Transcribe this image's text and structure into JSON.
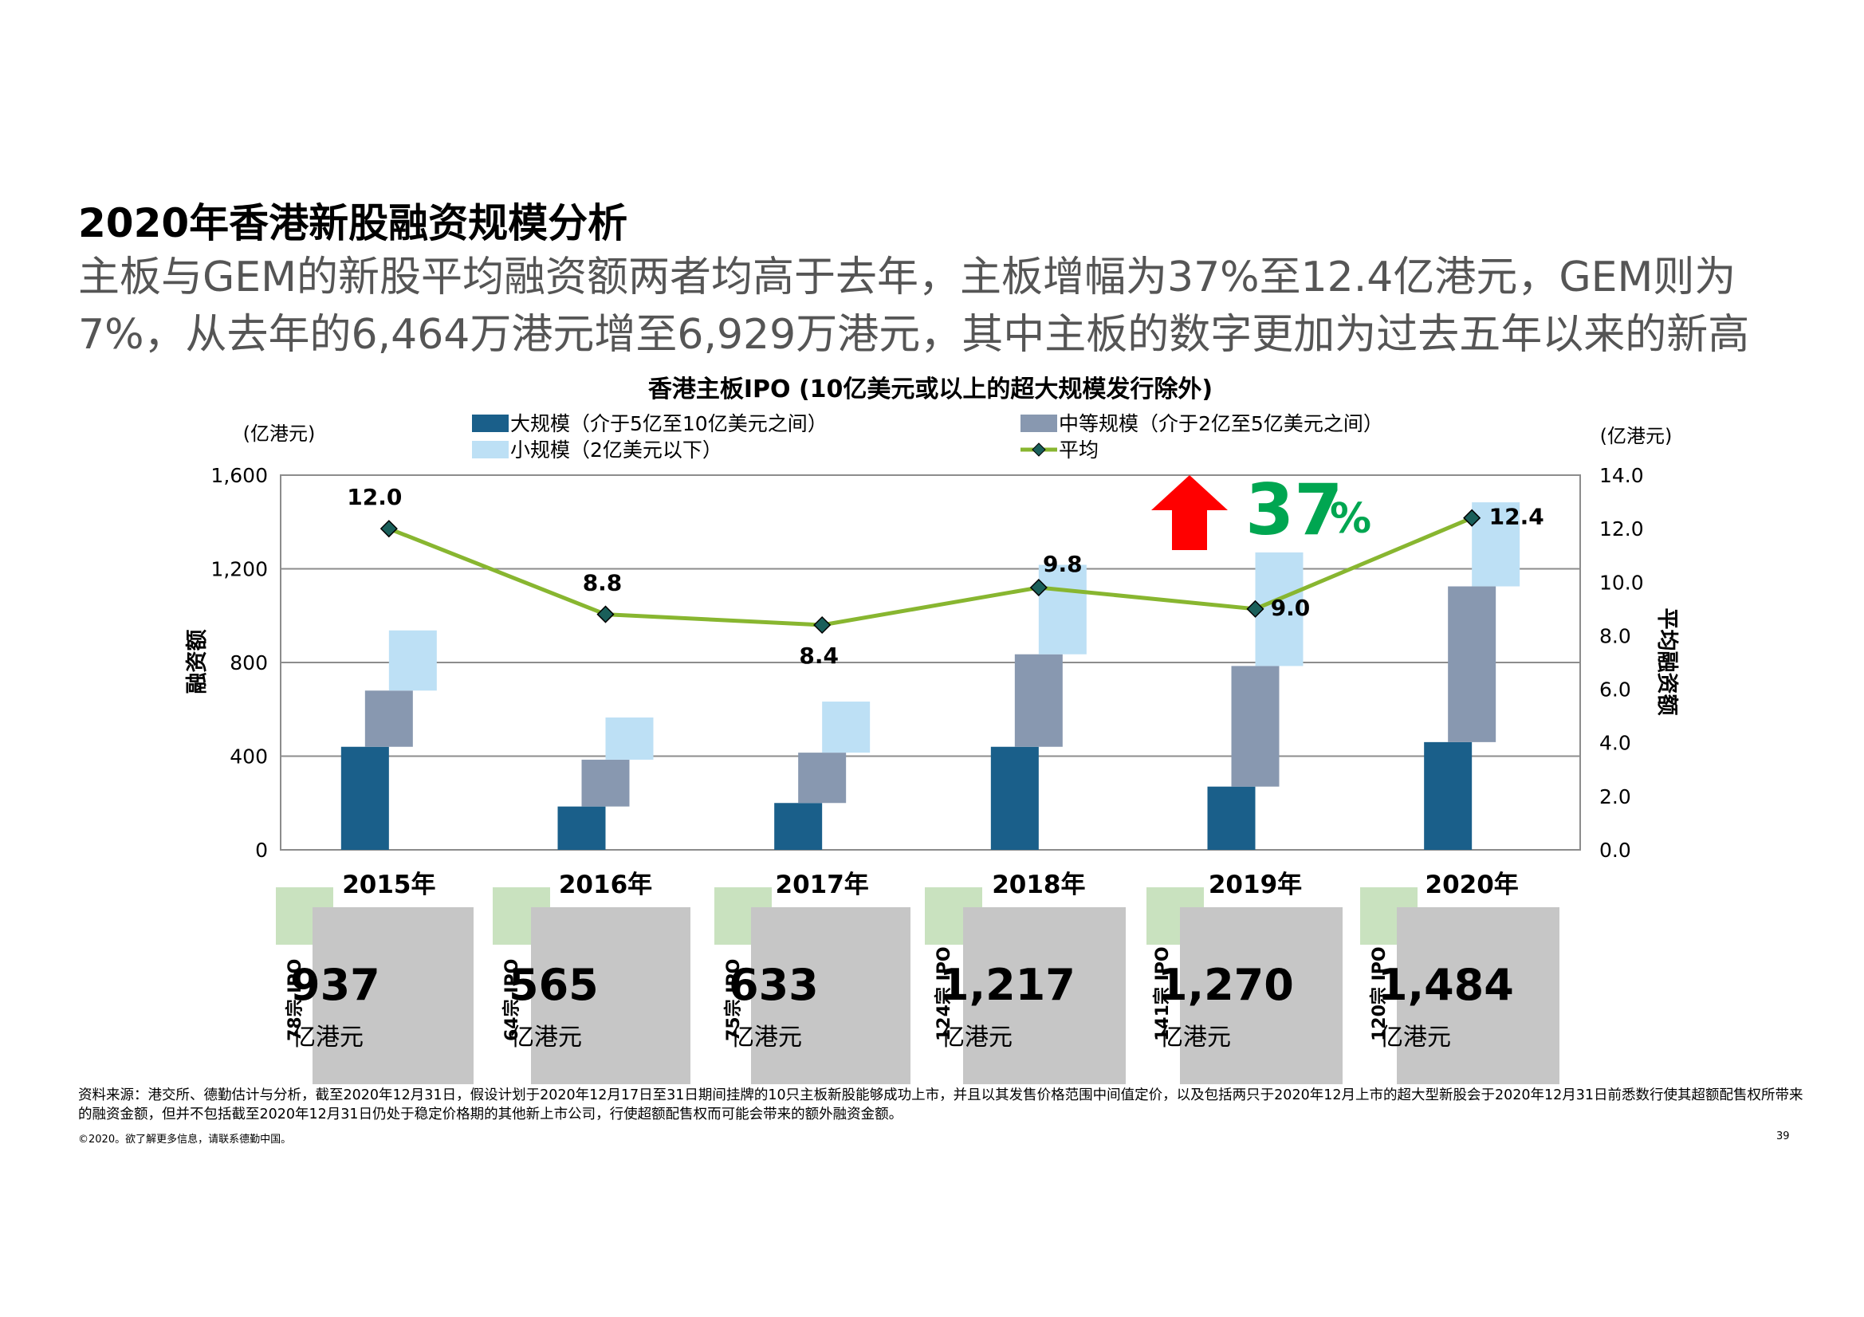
{
  "heading": "2020年香港新股融资规模分析",
  "subheading": "主板与GEM的新股平均融资额两者均高于去年，主板增幅为37%至12.4亿港元，GEM则为7%，从去年的6,464万港元增至6,929万港元，其中主板的数字更加为过去五年以来的新高",
  "callout": {
    "value": "37",
    "suffix": "%"
  },
  "chart_data": {
    "type": "bar",
    "title": "香港主板IPO (10亿美元或以上的超大规模发行除外)",
    "categories": [
      "2015年",
      "2016年",
      "2017年",
      "2018年",
      "2019年",
      "2020年"
    ],
    "left_axis": {
      "unit": "(亿港元)",
      "label": "融资额",
      "ylim": [
        0,
        1600
      ],
      "ticks": [
        "0",
        "400",
        "800",
        "1,200",
        "1,600"
      ]
    },
    "right_axis": {
      "unit": "(亿港元)",
      "label": "平均融资额",
      "ylim": [
        0,
        14
      ],
      "ticks": [
        "0.0",
        "2.0",
        "4.0",
        "6.0",
        "8.0",
        "10.0",
        "12.0",
        "14.0"
      ]
    },
    "series": [
      {
        "name": "大规模（介于5亿至10亿美元之间）",
        "kind": "bar",
        "color": "#1a5f8a",
        "values": [
          440,
          185,
          200,
          440,
          270,
          460
        ]
      },
      {
        "name": "中等规模（介于2亿至5亿美元之间）",
        "kind": "bar",
        "color": "#8898b0",
        "values": [
          240,
          200,
          215,
          395,
          515,
          665
        ]
      },
      {
        "name": "小规模（2亿美元以下）",
        "kind": "bar",
        "color": "#bde0f5",
        "values": [
          257,
          180,
          218,
          382,
          485,
          359
        ]
      },
      {
        "name": "平均",
        "kind": "line",
        "axis": "right",
        "color": "#88b630",
        "values": [
          12.0,
          8.8,
          8.4,
          9.8,
          9.0,
          12.4
        ],
        "labels": [
          "12.0",
          "8.8",
          "8.4",
          "9.8",
          "9.0",
          "12.4"
        ]
      }
    ],
    "legend_position": "top"
  },
  "totals": [
    {
      "year": "2015年",
      "ipo_count": "78宗 IPO",
      "value": "937",
      "unit": "亿港元"
    },
    {
      "year": "2016年",
      "ipo_count": "64宗 IPO",
      "value": "565",
      "unit": "亿港元"
    },
    {
      "year": "2017年",
      "ipo_count": "75宗 IPO",
      "value": "633",
      "unit": "亿港元"
    },
    {
      "year": "2018年",
      "ipo_count": "124宗 IPO",
      "value": "1,217",
      "unit": "亿港元"
    },
    {
      "year": "2019年",
      "ipo_count": "141宗 IPO",
      "value": "1,270",
      "unit": "亿港元"
    },
    {
      "year": "2020年",
      "ipo_count": "120宗 IPO",
      "value": "1,484",
      "unit": "亿港元"
    }
  ],
  "source": "资料来源：港交所、德勤估计与分析，截至2020年12月31日，假设计划于2020年12月17日至31日期间挂牌的10只主板新股能够成功上市，并且以其发售价格范围中间值定价，以及包括两只于2020年12月上市的超大型新股会于2020年12月31日前悉数行使其超额配售权所带来的融资金额，但并不包括截至2020年12月31日仍处于稳定价格期的其他新上市公司，行使超额配售权而可能会带来的额外融资金额。",
  "copyright": "©2020。欲了解更多信息，请联系德勤中国。",
  "page_number": "39",
  "colors": {
    "heading": "#000000",
    "subheading": "#555555",
    "callout": "#00a651",
    "arrow": "#ff0000",
    "line": "#88b630",
    "marker": "#1a5f5a",
    "green_square": "#c9e2bf",
    "grey_box": "#c6c6c6"
  }
}
